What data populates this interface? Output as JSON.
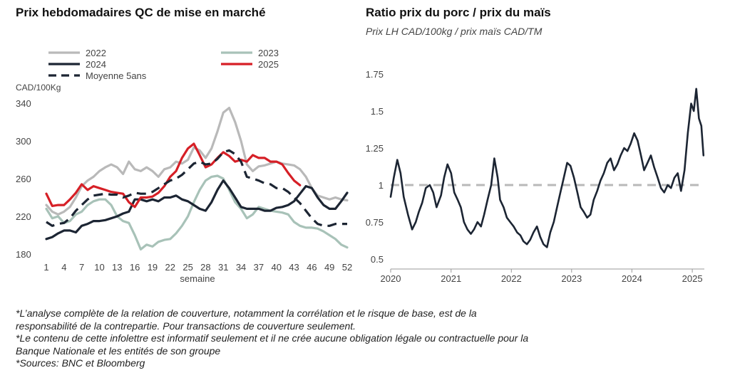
{
  "notes": [
    "*L’analyse complète de la relation de couverture, notamment la corrélation et le risque de base, est de la",
    "responsabilité de la contrepartie. Pour transactions de couverture seulement.",
    "*Le contenu de cette infolettre est informatif seulement et il ne crée aucune obligation légale ou contractuelle pour la",
    "Banque Nationale et les entités de son groupe",
    "*Sources: BNC et Bloomberg"
  ],
  "chart_data": [
    {
      "type": "line",
      "title": "Prix hebdomadaires QC de mise en marché",
      "xlabel": "semaine",
      "ylabel": "CAD/100Kg",
      "xlim": [
        1,
        52
      ],
      "ylim": [
        180,
        340
      ],
      "xticks": [
        1,
        4,
        7,
        10,
        13,
        16,
        19,
        22,
        25,
        28,
        31,
        34,
        37,
        40,
        43,
        46,
        49,
        52
      ],
      "yticks": [
        180,
        220,
        260,
        300,
        340
      ],
      "grid": false,
      "legend_position": "top",
      "series": [
        {
          "name": "2022",
          "color": "#b9b9b9",
          "dash": "solid",
          "x": [
            1,
            2,
            3,
            4,
            5,
            6,
            7,
            8,
            9,
            10,
            11,
            12,
            13,
            14,
            15,
            16,
            17,
            18,
            19,
            20,
            21,
            22,
            23,
            24,
            25,
            26,
            27,
            28,
            29,
            30,
            31,
            32,
            33,
            34,
            35,
            36,
            37,
            38,
            39,
            40,
            41,
            42,
            43,
            44,
            45,
            46,
            47,
            48,
            49,
            50,
            51,
            52
          ],
          "y": [
            232,
            225,
            222,
            225,
            230,
            240,
            252,
            258,
            262,
            268,
            272,
            275,
            272,
            265,
            278,
            270,
            268,
            272,
            268,
            262,
            270,
            272,
            278,
            276,
            280,
            293,
            290,
            282,
            292,
            310,
            330,
            335,
            320,
            300,
            275,
            268,
            273,
            274,
            276,
            278,
            276,
            275,
            274,
            270,
            262,
            250,
            242,
            240,
            238,
            240,
            238,
            237
          ]
        },
        {
          "name": "2023",
          "color": "#a8c2b8",
          "dash": "solid",
          "x": [
            1,
            2,
            3,
            4,
            5,
            6,
            7,
            8,
            9,
            10,
            11,
            12,
            13,
            14,
            15,
            16,
            17,
            18,
            19,
            20,
            21,
            22,
            23,
            24,
            25,
            26,
            27,
            28,
            29,
            30,
            31,
            32,
            33,
            34,
            35,
            36,
            37,
            38,
            39,
            40,
            41,
            42,
            43,
            44,
            45,
            46,
            47,
            48,
            49,
            50,
            51,
            52
          ],
          "y": [
            228,
            218,
            220,
            213,
            215,
            222,
            225,
            232,
            236,
            238,
            238,
            232,
            220,
            215,
            213,
            200,
            185,
            190,
            188,
            193,
            195,
            196,
            202,
            210,
            220,
            235,
            248,
            258,
            262,
            263,
            260,
            248,
            235,
            228,
            218,
            222,
            230,
            228,
            226,
            225,
            224,
            222,
            214,
            210,
            208,
            208,
            207,
            204,
            200,
            196,
            190,
            187
          ]
        },
        {
          "name": "2024",
          "color": "#1c2533",
          "dash": "solid",
          "x": [
            1,
            2,
            3,
            4,
            5,
            6,
            7,
            8,
            9,
            10,
            11,
            12,
            13,
            14,
            15,
            16,
            17,
            18,
            19,
            20,
            21,
            22,
            23,
            24,
            25,
            26,
            27,
            28,
            29,
            30,
            31,
            32,
            33,
            34,
            35,
            36,
            37,
            38,
            39,
            40,
            41,
            42,
            43,
            44,
            45,
            46,
            47,
            48,
            49,
            50,
            51,
            52
          ],
          "y": [
            196,
            198,
            202,
            205,
            205,
            203,
            210,
            212,
            215,
            215,
            216,
            218,
            220,
            223,
            225,
            238,
            238,
            236,
            238,
            236,
            240,
            240,
            242,
            238,
            236,
            232,
            228,
            226,
            235,
            248,
            258,
            250,
            240,
            230,
            228,
            228,
            228,
            226,
            226,
            229,
            230,
            232,
            236,
            244,
            252,
            250,
            240,
            232,
            228,
            228,
            236,
            245
          ]
        },
        {
          "name": "2025",
          "color": "#d61f26",
          "dash": "solid",
          "x": [
            1,
            2,
            3,
            4,
            5,
            6,
            7,
            8,
            9,
            10,
            11,
            12,
            13,
            14,
            15,
            16,
            17,
            18,
            19,
            20,
            21,
            22,
            23,
            24,
            25,
            26,
            27,
            28,
            29,
            30,
            31,
            32,
            33,
            34,
            35,
            36,
            37,
            38,
            39,
            40,
            41,
            42,
            43,
            44
          ],
          "y": [
            244,
            231,
            232,
            232,
            238,
            245,
            254,
            248,
            252,
            250,
            248,
            246,
            245,
            244,
            235,
            230,
            240,
            240,
            241,
            245,
            252,
            262,
            268,
            282,
            292,
            297,
            285,
            272,
            275,
            282,
            288,
            284,
            278,
            280,
            278,
            285,
            282,
            282,
            278,
            278,
            275,
            266,
            258,
            253
          ]
        },
        {
          "name": "Moyenne 5ans",
          "color": "#1c2533",
          "dash": "dashed",
          "x": [
            1,
            2,
            3,
            4,
            5,
            6,
            7,
            8,
            9,
            10,
            11,
            12,
            13,
            14,
            15,
            16,
            17,
            18,
            19,
            20,
            21,
            22,
            23,
            24,
            25,
            26,
            27,
            28,
            29,
            30,
            31,
            32,
            33,
            34,
            35,
            36,
            37,
            38,
            39,
            40,
            41,
            42,
            43,
            44,
            45,
            46,
            47,
            48,
            49,
            50,
            51,
            52
          ],
          "y": [
            214,
            210,
            212,
            213,
            218,
            226,
            232,
            238,
            242,
            243,
            244,
            243,
            243,
            240,
            242,
            245,
            244,
            244,
            246,
            250,
            254,
            258,
            260,
            264,
            270,
            276,
            278,
            275,
            276,
            281,
            288,
            290,
            286,
            278,
            262,
            260,
            258,
            255,
            254,
            250,
            250,
            246,
            240,
            234,
            226,
            218,
            212,
            210,
            210,
            212,
            212,
            212
          ]
        }
      ]
    },
    {
      "type": "line",
      "title": "Ratio prix du porc / prix du maïs",
      "subtitle": "Prix LH CAD/100kg / prix maïs CAD/TM",
      "xlabel": "",
      "ylabel": "",
      "xlim": [
        "2020-01-01",
        "2025-03-15"
      ],
      "ylim": [
        0.5,
        1.75
      ],
      "xticks": [
        "2020",
        "2021",
        "2022",
        "2023",
        "2024",
        "2025"
      ],
      "yticks": [
        0.5,
        0.75,
        1,
        1.25,
        1.5,
        1.75
      ],
      "ytick_labels": [
        "0.5",
        "0.75",
        "1",
        "1.25",
        "1.5",
        "1.75"
      ],
      "grid": false,
      "reference_line": {
        "y": 1,
        "color": "#b9b9b9",
        "dash": "dashed"
      },
      "series": [
        {
          "color": "#1c2533",
          "x": [
            "2020-01-01",
            "2020-01-20",
            "2020-02-10",
            "2020-03-01",
            "2020-03-20",
            "2020-04-15",
            "2020-05-10",
            "2020-06-01",
            "2020-06-20",
            "2020-07-10",
            "2020-08-01",
            "2020-08-25",
            "2020-09-15",
            "2020-10-05",
            "2020-11-01",
            "2020-11-20",
            "2020-12-10",
            "2021-01-01",
            "2021-01-20",
            "2021-02-10",
            "2021-03-01",
            "2021-03-20",
            "2021-04-10",
            "2021-05-01",
            "2021-05-20",
            "2021-06-10",
            "2021-07-01",
            "2021-07-20",
            "2021-08-10",
            "2021-09-01",
            "2021-09-20",
            "2021-10-10",
            "2021-10-25",
            "2021-11-15",
            "2021-12-05",
            "2021-12-25",
            "2022-01-15",
            "2022-02-05",
            "2022-02-25",
            "2022-03-15",
            "2022-04-05",
            "2022-04-25",
            "2022-05-15",
            "2022-06-05",
            "2022-06-25",
            "2022-07-15",
            "2022-08-05",
            "2022-08-25",
            "2022-09-15",
            "2022-10-05",
            "2022-10-25",
            "2022-11-15",
            "2022-12-05",
            "2022-12-25",
            "2023-01-15",
            "2023-02-05",
            "2023-02-25",
            "2023-03-15",
            "2023-04-05",
            "2023-04-25",
            "2023-05-15",
            "2023-06-05",
            "2023-06-25",
            "2023-07-15",
            "2023-08-05",
            "2023-08-25",
            "2023-09-15",
            "2023-10-05",
            "2023-10-25",
            "2023-11-15",
            "2023-12-05",
            "2023-12-25",
            "2024-01-15",
            "2024-02-05",
            "2024-02-25",
            "2024-03-15",
            "2024-04-05",
            "2024-04-25",
            "2024-05-15",
            "2024-06-05",
            "2024-06-25",
            "2024-07-15",
            "2024-08-05",
            "2024-08-25",
            "2024-09-15",
            "2024-10-05",
            "2024-10-25",
            "2024-11-15",
            "2024-12-05",
            "2024-12-25",
            "2025-01-10",
            "2025-01-25",
            "2025-02-10",
            "2025-02-25",
            "2025-03-10"
          ],
          "y": [
            0.92,
            1.05,
            1.17,
            1.08,
            0.92,
            0.8,
            0.7,
            0.75,
            0.82,
            0.88,
            0.98,
            1.0,
            0.95,
            0.85,
            0.93,
            1.05,
            1.14,
            1.08,
            0.95,
            0.9,
            0.85,
            0.75,
            0.7,
            0.67,
            0.7,
            0.75,
            0.72,
            0.8,
            0.9,
            1.0,
            1.18,
            1.05,
            0.9,
            0.85,
            0.78,
            0.75,
            0.72,
            0.68,
            0.66,
            0.62,
            0.6,
            0.63,
            0.68,
            0.72,
            0.65,
            0.6,
            0.58,
            0.68,
            0.75,
            0.85,
            0.95,
            1.05,
            1.15,
            1.13,
            1.05,
            0.95,
            0.85,
            0.82,
            0.78,
            0.8,
            0.9,
            0.96,
            1.03,
            1.08,
            1.15,
            1.18,
            1.1,
            1.14,
            1.2,
            1.25,
            1.23,
            1.28,
            1.35,
            1.3,
            1.2,
            1.1,
            1.15,
            1.2,
            1.12,
            1.05,
            0.98,
            0.95,
            1.0,
            0.98,
            1.05,
            1.08,
            0.96,
            1.1,
            1.35,
            1.55,
            1.5,
            1.65,
            1.45,
            1.4,
            1.2
          ]
        }
      ]
    }
  ]
}
